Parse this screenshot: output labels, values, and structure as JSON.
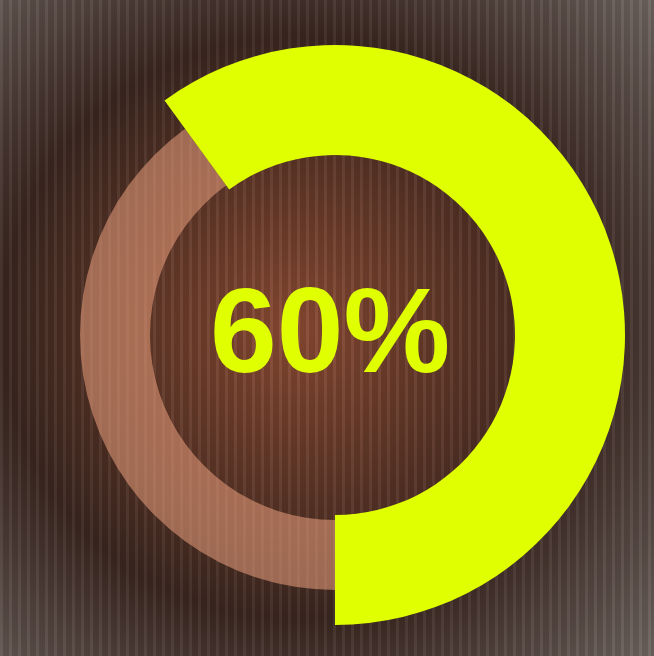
{
  "chart_data": {
    "type": "donut",
    "values": [
      60
    ],
    "value_labels": [
      "60%"
    ],
    "color": "#e0ff00",
    "data_labels": true
  }
}
